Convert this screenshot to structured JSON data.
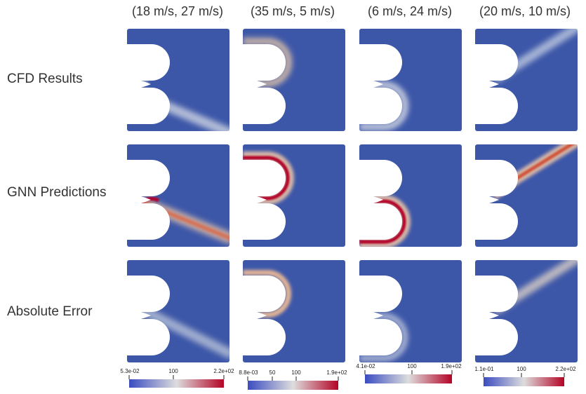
{
  "columns": [
    {
      "label": "(18 m/s, 27 m/s)"
    },
    {
      "label": "(35 m/s, 5 m/s)"
    },
    {
      "label": "(6 m/s, 24 m/s)"
    },
    {
      "label": "(20 m/s, 10 m/s)"
    }
  ],
  "rows": [
    {
      "label": "CFD Results"
    },
    {
      "label": "GNN Predictions"
    },
    {
      "label": "Absolute Error"
    }
  ],
  "colorbars": [
    {
      "min": "5.3e-02",
      "mid": "100",
      "max": "2.2e+02"
    },
    {
      "min": "8.8e-03",
      "mid1": "50",
      "mid2": "100",
      "max": "1.9e+02"
    },
    {
      "min": "4.1e-02",
      "mid": "100",
      "max": "1.9e+02"
    },
    {
      "min": "1.1e-01",
      "mid": "100",
      "max": "2.2e+02"
    }
  ],
  "colors": {
    "low": "#3b4cc0",
    "mid": "#dddddd",
    "high": "#b40426"
  }
}
